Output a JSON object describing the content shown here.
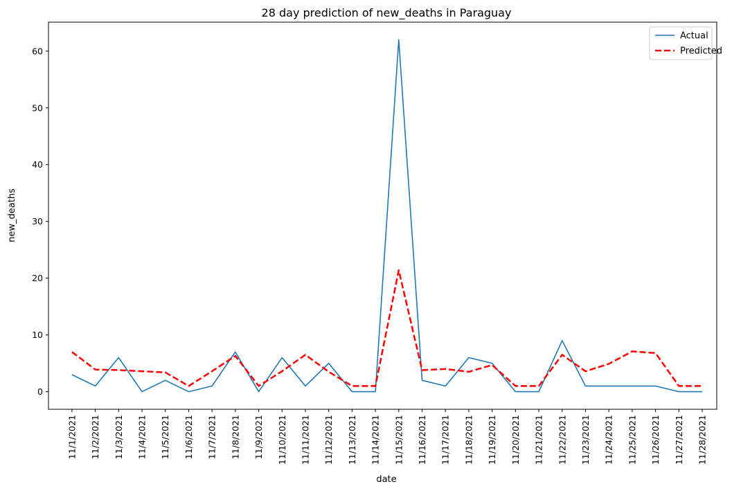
{
  "chart_data": {
    "type": "line",
    "title": "28 day prediction of new_deaths in Paraguay",
    "xlabel": "date",
    "ylabel": "new_deaths",
    "x": [
      "11/1/2021",
      "11/2/2021",
      "11/3/2021",
      "11/4/2021",
      "11/5/2021",
      "11/6/2021",
      "11/7/2021",
      "11/8/2021",
      "11/9/2021",
      "11/10/2021",
      "11/11/2021",
      "11/12/2021",
      "11/13/2021",
      "11/14/2021",
      "11/15/2021",
      "11/16/2021",
      "11/17/2021",
      "11/18/2021",
      "11/19/2021",
      "11/20/2021",
      "11/21/2021",
      "11/22/2021",
      "11/23/2021",
      "11/24/2021",
      "11/25/2021",
      "11/26/2021",
      "11/27/2021",
      "11/28/2021"
    ],
    "ylim": [
      -3.1,
      65.1
    ],
    "yticks": [
      0,
      10,
      20,
      30,
      40,
      50,
      60
    ],
    "grid": false,
    "legend_position": "top-right",
    "series": [
      {
        "name": "Actual",
        "color": "#1f77b4",
        "style": "solid",
        "values": [
          3,
          1,
          6,
          0,
          2,
          0,
          1,
          7,
          0,
          6,
          1,
          5,
          0,
          0,
          62,
          2,
          1,
          6,
          5,
          0,
          0,
          9,
          1,
          1,
          1,
          1,
          0,
          0
        ]
      },
      {
        "name": "Predicted",
        "color": "#ff0000",
        "style": "dashed",
        "values": [
          7.0,
          3.9,
          3.8,
          3.6,
          3.4,
          1.0,
          3.6,
          6.3,
          1.0,
          3.6,
          6.5,
          3.5,
          1.0,
          1.0,
          21.4,
          3.8,
          4.0,
          3.5,
          4.7,
          1.0,
          1.0,
          6.5,
          3.6,
          4.9,
          7.1,
          6.8,
          1.0,
          1.0
        ]
      }
    ]
  }
}
